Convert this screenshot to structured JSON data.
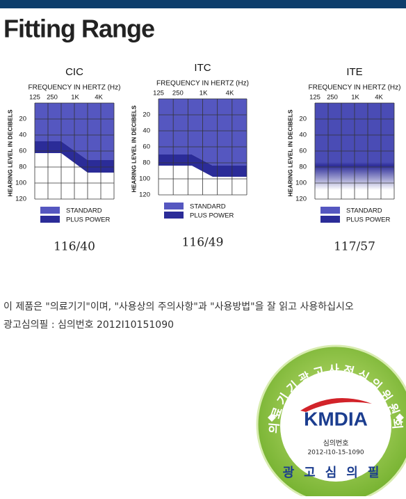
{
  "header": {
    "title": "Fitting Range"
  },
  "charts": [
    {
      "title": "CIC",
      "x_label": "FREQUENCY IN HERTZ (Hz)",
      "x_ticks": [
        "125",
        "250",
        "1K",
        "4K"
      ],
      "y_label": "HEARING LEVEL IN DECIBELS",
      "y_ticks": [
        "20",
        "40",
        "60",
        "80",
        "100",
        "120"
      ],
      "legend": [
        "STANDARD",
        "PLUS POWER"
      ],
      "model": "116/40"
    },
    {
      "title": "ITC",
      "x_label": "FREQUENCY IN HERTZ (Hz)",
      "x_ticks": [
        "125",
        "250",
        "1K",
        "4K"
      ],
      "y_label": "HEARING LEVEL IN DECIBELS",
      "y_ticks": [
        "20",
        "40",
        "60",
        "80",
        "100",
        "120"
      ],
      "legend": [
        "STANDARD",
        "PLUS POWER"
      ],
      "model": "116/49"
    },
    {
      "title": "ITE",
      "x_label": "FREQUENCY IN HERTZ (Hz)",
      "x_ticks": [
        "125",
        "250",
        "1K",
        "4K"
      ],
      "y_label": "HEARING LEVEL IN DECIBELS",
      "y_ticks": [
        "20",
        "40",
        "60",
        "80",
        "100",
        "120"
      ],
      "legend": [
        "STANDARD",
        "PLUS POWER"
      ],
      "model": "117/57"
    }
  ],
  "notice": {
    "lines": [
      "이 제품은 \"의료기기\"이며, \"사용상의 주의사항\"과 \"사용방법\"을 잘 읽고 사용하십시오",
      "광고심의필 : 심의번호 2012I10151090"
    ]
  },
  "badge": {
    "arc_text": "의료기기광고사전심의위원회",
    "logo": "KMDIA",
    "number_label": "심의번호",
    "number": "2012-I10-15-1090",
    "bottom_text": "광고심의필"
  }
}
